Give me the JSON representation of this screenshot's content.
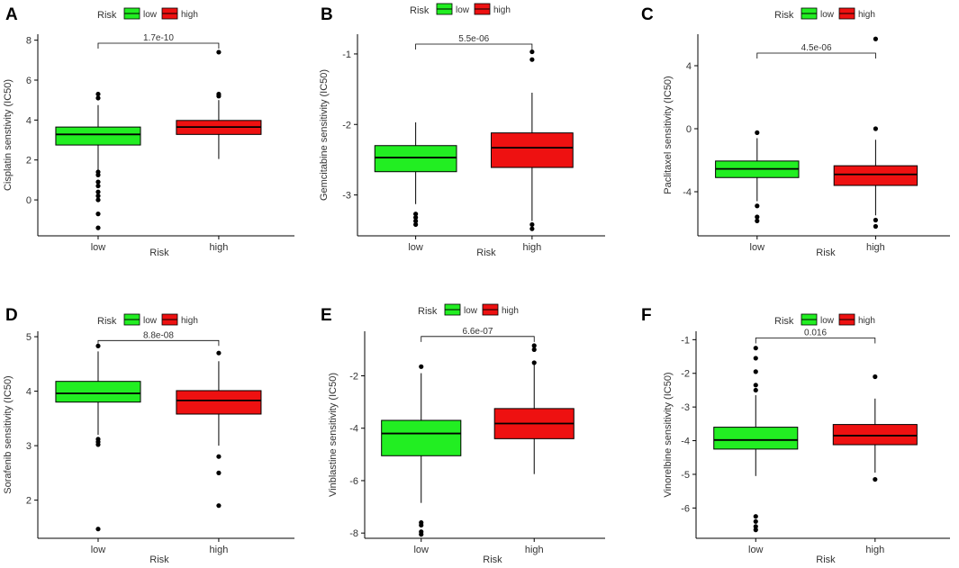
{
  "legend": {
    "title": "Risk",
    "labels": [
      "low",
      "high"
    ]
  },
  "colors": {
    "low": "#22ee22",
    "high": "#ee1111",
    "axis": "#000000",
    "text": "#333333",
    "panel_label": "#000000"
  },
  "chart_data": [
    {
      "panel": "A",
      "type": "boxplot",
      "title": "",
      "xlabel": "Risk",
      "ylabel": "Cisplatin senstivity (IC50)",
      "categories": [
        "low",
        "high"
      ],
      "yticks": [
        0,
        2,
        4,
        6,
        8
      ],
      "ylim": [
        -1.8,
        8.3
      ],
      "boxes": [
        {
          "group": "low",
          "q1": 2.75,
          "median": 3.28,
          "q3": 3.65,
          "whisker_low": 1.5,
          "whisker_high": 4.75,
          "outliers": [
            5.3,
            5.1,
            1.4,
            1.25,
            0.9,
            0.7,
            0.4,
            0.2,
            0.0,
            -0.7,
            -1.4
          ]
        },
        {
          "group": "high",
          "q1": 3.28,
          "median": 3.65,
          "q3": 3.98,
          "whisker_low": 2.05,
          "whisker_high": 5.0,
          "outliers": [
            7.4,
            5.3,
            5.2
          ]
        }
      ],
      "annotation": {
        "text": "1.7e-10",
        "y": 7.85
      }
    },
    {
      "panel": "B",
      "type": "boxplot",
      "title": "",
      "xlabel": "Risk",
      "ylabel": "Gemcitabine sensitivity (IC50)",
      "categories": [
        "low",
        "high"
      ],
      "yticks": [
        -1,
        -2,
        -3
      ],
      "ylim": [
        -3.58,
        -0.72
      ],
      "boxes": [
        {
          "group": "low",
          "q1": -2.67,
          "median": -2.47,
          "q3": -2.3,
          "whisker_low": -3.13,
          "whisker_high": -1.97,
          "outliers": [
            -3.27,
            -3.32,
            -3.37,
            -3.42
          ]
        },
        {
          "group": "high",
          "q1": -2.61,
          "median": -2.33,
          "q3": -2.12,
          "whisker_low": -3.37,
          "whisker_high": -1.55,
          "outliers": [
            -0.97,
            -1.08,
            -3.42,
            -3.48
          ]
        }
      ],
      "annotation": {
        "text": "5.5e-06",
        "y": -0.86
      }
    },
    {
      "panel": "C",
      "type": "boxplot",
      "title": "",
      "xlabel": "Risk",
      "ylabel": "Paclitaxel sensitivity (IC50)",
      "categories": [
        "low",
        "high"
      ],
      "yticks": [
        4,
        0,
        -4
      ],
      "ylim": [
        -6.8,
        6.0
      ],
      "boxes": [
        {
          "group": "low",
          "q1": -3.1,
          "median": -2.55,
          "q3": -2.05,
          "whisker_low": -4.6,
          "whisker_high": -0.6,
          "outliers": [
            -0.25,
            -4.9,
            -5.6,
            -5.85
          ]
        },
        {
          "group": "high",
          "q1": -3.6,
          "median": -2.9,
          "q3": -2.35,
          "whisker_low": -5.5,
          "whisker_high": -0.7,
          "outliers": [
            5.7,
            0.0,
            -5.8,
            -6.2
          ]
        }
      ],
      "annotation": {
        "text": "4.5e-06",
        "y": 4.8
      }
    },
    {
      "panel": "D",
      "type": "boxplot",
      "title": "",
      "xlabel": "Risk",
      "ylabel": "Sorafenib sensitivity (IC50)",
      "categories": [
        "low",
        "high"
      ],
      "yticks": [
        5,
        4,
        3,
        2
      ],
      "ylim": [
        1.3,
        5.1
      ],
      "boxes": [
        {
          "group": "low",
          "q1": 3.8,
          "median": 3.96,
          "q3": 4.18,
          "whisker_low": 3.2,
          "whisker_high": 4.73,
          "outliers": [
            4.83,
            3.12,
            3.07,
            3.02,
            1.47
          ]
        },
        {
          "group": "high",
          "q1": 3.58,
          "median": 3.83,
          "q3": 4.01,
          "whisker_low": 3.0,
          "whisker_high": 4.55,
          "outliers": [
            4.7,
            2.8,
            2.5,
            1.9
          ]
        }
      ],
      "annotation": {
        "text": "8.8e-08",
        "y": 4.93
      }
    },
    {
      "panel": "E",
      "type": "boxplot",
      "title": "",
      "xlabel": "Risk",
      "ylabel": "Vinblastine sensitivity (IC50)",
      "categories": [
        "low",
        "high"
      ],
      "yticks": [
        -2,
        -4,
        -6,
        -8
      ],
      "ylim": [
        -8.2,
        -0.3
      ],
      "boxes": [
        {
          "group": "low",
          "q1": -5.05,
          "median": -4.2,
          "q3": -3.7,
          "whisker_low": -6.85,
          "whisker_high": -1.9,
          "outliers": [
            -1.65,
            -7.6,
            -7.7,
            -7.95,
            -8.05
          ]
        },
        {
          "group": "high",
          "q1": -4.4,
          "median": -3.82,
          "q3": -3.25,
          "whisker_low": -5.75,
          "whisker_high": -1.55,
          "outliers": [
            -0.85,
            -1.0,
            -1.5
          ]
        }
      ],
      "annotation": {
        "text": "6.6e-07",
        "y": -0.5
      }
    },
    {
      "panel": "F",
      "type": "boxplot",
      "title": "",
      "xlabel": "Risk",
      "ylabel": "Vinorelbine sensitivity (IC50)",
      "categories": [
        "low",
        "high"
      ],
      "yticks": [
        -1,
        -2,
        -3,
        -4,
        -5,
        -6
      ],
      "ylim": [
        -6.9,
        -0.75
      ],
      "boxes": [
        {
          "group": "low",
          "q1": -4.25,
          "median": -3.98,
          "q3": -3.6,
          "whisker_low": -5.05,
          "whisker_high": -2.65,
          "outliers": [
            -1.25,
            -1.55,
            -1.95,
            -2.35,
            -2.5,
            -6.25,
            -6.4,
            -6.55,
            -6.65
          ]
        },
        {
          "group": "high",
          "q1": -4.12,
          "median": -3.85,
          "q3": -3.52,
          "whisker_low": -4.95,
          "whisker_high": -2.75,
          "outliers": [
            -2.1,
            -5.15
          ]
        }
      ],
      "annotation": {
        "text": "0.016",
        "y": -0.95
      }
    }
  ]
}
